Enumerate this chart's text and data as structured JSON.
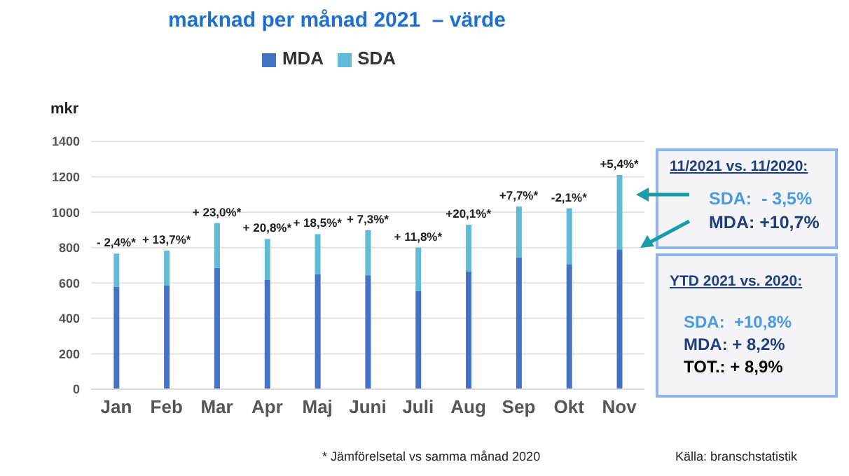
{
  "chart_data": {
    "type": "bar",
    "title": "marknad per månad 2021  – värde",
    "ylabel": "mkr",
    "categories": [
      "Jan",
      "Feb",
      "Mar",
      "Apr",
      "Maj",
      "Juni",
      "Juli",
      "Aug",
      "Sep",
      "Okt",
      "Nov"
    ],
    "stacked": true,
    "series": [
      {
        "name": "MDA",
        "color": "#4472c4",
        "values": [
          578,
          585,
          685,
          617,
          649,
          644,
          556,
          666,
          744,
          707,
          790
        ]
      },
      {
        "name": "SDA",
        "color": "#62bbd6",
        "values": [
          188,
          198,
          254,
          232,
          227,
          254,
          244,
          263,
          288,
          315,
          420
        ]
      }
    ],
    "ylim": [
      0,
      1400
    ],
    "yticks": [
      0,
      200,
      400,
      600,
      800,
      1000,
      1200,
      1400
    ],
    "grid": "y",
    "legend": "top",
    "annotations": [
      {
        "text": "- 2,4%*",
        "x": "Jan",
        "y": 766
      },
      {
        "text": "+ 13,7%*",
        "x": "Feb",
        "y": 783
      },
      {
        "text": "+ 23,0%*",
        "x": "Mar",
        "y": 939
      },
      {
        "text": "+ 20,8%*",
        "x": "Apr",
        "y": 849
      },
      {
        "text": "+ 18,5%*",
        "x": "Maj",
        "y": 876
      },
      {
        "text": "+ 7,3%*",
        "x": "Juni",
        "y": 898
      },
      {
        "text": "+ 11,8%*",
        "x": "Juli",
        "y": 800
      },
      {
        "text": "+20,1%*",
        "x": "Aug",
        "y": 929
      },
      {
        "text": "+7,7%*",
        "x": "Sep",
        "y": 1032
      },
      {
        "text": "-2,1%*",
        "x": "Okt",
        "y": 1022
      },
      {
        "text": "+5,4%*",
        "x": "Nov",
        "y": 1210
      },
      "11/2021 vs. 11/2020:",
      "SDA:  - 3,5%",
      "MDA: +10,7%",
      "YTD 2021 vs. 2020:",
      "SDA:  +10,8%",
      "MDA: + 8,2%",
      "TOT.: + 8,9%",
      "* Jämförelsetal vs samma månad 2020",
      "Källa: branschstatistik"
    ]
  }
}
